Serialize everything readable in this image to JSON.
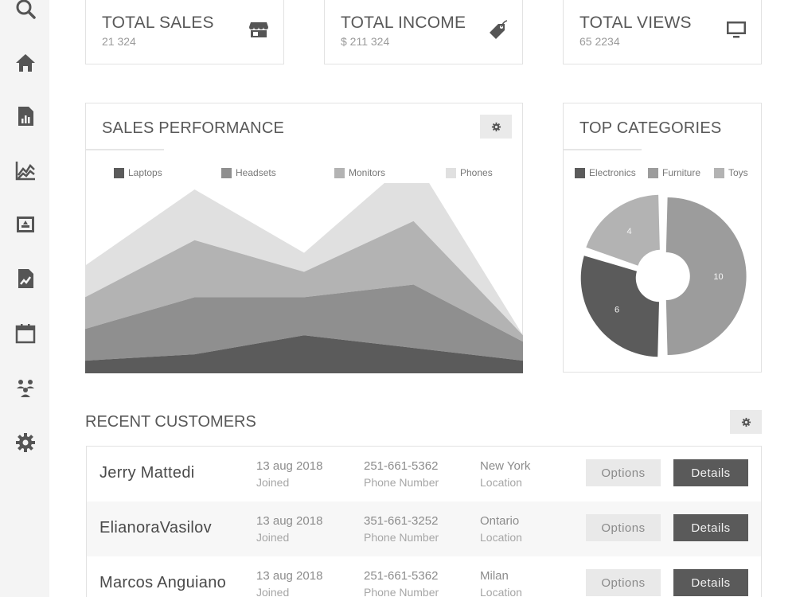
{
  "sidebar": {
    "icons": [
      "search-icon",
      "home-icon",
      "report-icon",
      "line-chart-icon",
      "media-icon",
      "image-icon",
      "calendar-icon",
      "team-icon",
      "gear-icon"
    ]
  },
  "stats": [
    {
      "title": "TOTAL SALES",
      "value": "21 324",
      "icon": "store-icon"
    },
    {
      "title": "TOTAL INCOME",
      "value": "$ 211 324",
      "icon": "tag-icon"
    },
    {
      "title": "TOTAL VIEWS",
      "value": "65 2234",
      "icon": "monitor-icon"
    }
  ],
  "sales_panel": {
    "title": "SALES PERFORMANCE"
  },
  "categories_panel": {
    "title": "TOP CATEGORIES"
  },
  "colors": {
    "dark": "#5b5b5b",
    "mid": "#8f8f8f",
    "light": "#b3b3b3",
    "lightest": "#e0e0e0"
  },
  "chart_data": [
    {
      "type": "area",
      "stacked": true,
      "legend_position": "top",
      "series": [
        {
          "name": "Laptops",
          "values": [
            2,
            3,
            6,
            4,
            2
          ],
          "color": "#5b5b5b"
        },
        {
          "name": "Headsets",
          "values": [
            5,
            9,
            6,
            10,
            3
          ],
          "color": "#8f8f8f"
        },
        {
          "name": "Monitors",
          "values": [
            5,
            9,
            4,
            10,
            1
          ],
          "color": "#b3b3b3"
        },
        {
          "name": "Phones",
          "values": [
            5,
            8,
            3,
            10,
            0
          ],
          "color": "#e0e0e0"
        }
      ]
    },
    {
      "type": "pie",
      "donut": true,
      "legend_position": "top",
      "slices": [
        {
          "name": "Furniture",
          "value": 10,
          "color": "#9c9c9c"
        },
        {
          "name": "Electronics",
          "value": 6,
          "color": "#5b5b5b"
        },
        {
          "name": "Toys",
          "value": 4,
          "color": "#b3b3b3"
        }
      ],
      "legend_order": [
        "Electronics",
        "Furniture",
        "Toys"
      ]
    }
  ],
  "customers": {
    "title": "RECENT CUSTOMERS",
    "options_label": "Options",
    "details_label": "Details",
    "rows": [
      {
        "name": "Jerry Mattedi",
        "date": "13 aug 2018",
        "date_label": "Joined",
        "phone": "251-661-5362",
        "phone_label": "Phone Number",
        "location": "New York",
        "location_label": "Location"
      },
      {
        "name": "ElianoraVasilov",
        "date": "13 aug 2018",
        "date_label": "Joined",
        "phone": "351-661-3252",
        "phone_label": "Phone Number",
        "location": "Ontario",
        "location_label": "Location"
      },
      {
        "name": "Marcos Anguiano",
        "date": "13 aug 2018",
        "date_label": "Joined",
        "phone": "251-661-5362",
        "phone_label": "Phone Number",
        "location": "Milan",
        "location_label": "Location"
      }
    ]
  }
}
